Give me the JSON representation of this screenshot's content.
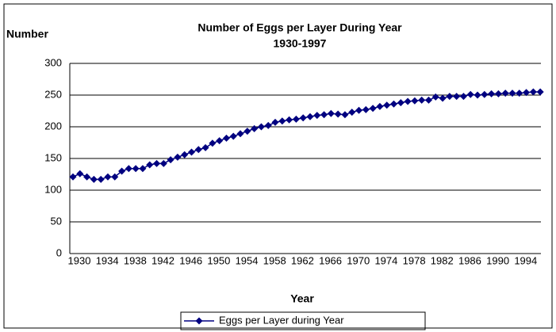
{
  "chart_data": {
    "type": "line",
    "title": "Number of Eggs per Layer During Year",
    "subtitle": "1930-1997",
    "y_label": "Number",
    "x_label": "Year",
    "categories": [
      "1930",
      null,
      null,
      null,
      "1934",
      null,
      null,
      null,
      "1938",
      null,
      null,
      null,
      "1942",
      null,
      null,
      null,
      "1946",
      null,
      null,
      null,
      "1950",
      null,
      null,
      null,
      "1954",
      null,
      null,
      null,
      "1958",
      null,
      null,
      null,
      "1962",
      null,
      null,
      null,
      "1966",
      null,
      null,
      null,
      "1970",
      null,
      null,
      null,
      "1974",
      null,
      null,
      null,
      "1978",
      null,
      null,
      null,
      "1982",
      null,
      null,
      null,
      "1986",
      null,
      null,
      null,
      "1990",
      null,
      null,
      null,
      "1994",
      null,
      null,
      null
    ],
    "series": [
      {
        "name": "Eggs per Layer during Year",
        "color": "#000080",
        "values": [
          121,
          126,
          121,
          117,
          117,
          121,
          121,
          130,
          134,
          134,
          134,
          140,
          142,
          142,
          148,
          152,
          156,
          160,
          164,
          167,
          174,
          178,
          182,
          185,
          189,
          193,
          197,
          200,
          202,
          207,
          209,
          211,
          212,
          214,
          216,
          218,
          219,
          221,
          220,
          219,
          223,
          226,
          227,
          229,
          232,
          234,
          236,
          238,
          240,
          241,
          242,
          242,
          247,
          245,
          248,
          248,
          248,
          251,
          250,
          251,
          252,
          252,
          253,
          253,
          253,
          254,
          255,
          255
        ]
      }
    ],
    "ylim": [
      0,
      300
    ],
    "yticks": [
      0,
      50,
      100,
      150,
      200,
      250,
      300
    ],
    "grid": true,
    "legend": "bottom"
  }
}
